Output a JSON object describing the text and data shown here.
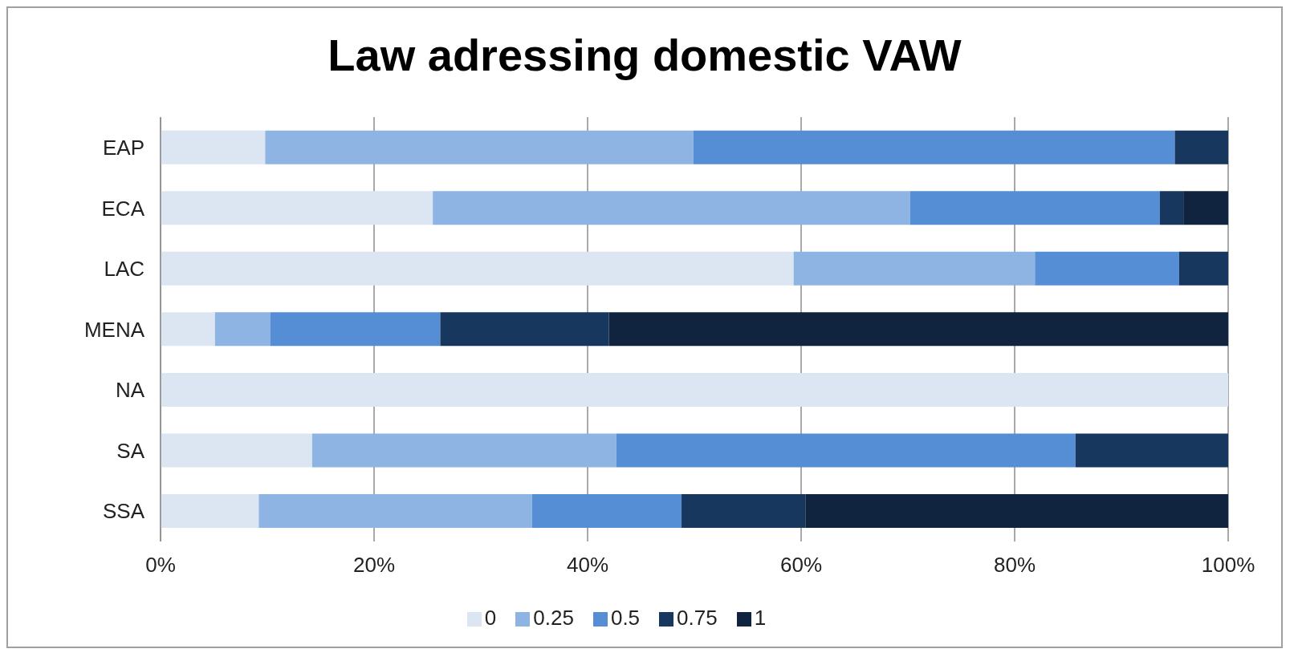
{
  "chart_data": {
    "type": "bar",
    "title": "Law adressing domestic VAW",
    "orientation": "horizontal",
    "stacked": true,
    "categories": [
      "EAP",
      "ECA",
      "LAC",
      "MENA",
      "NA",
      "SA",
      "SSA"
    ],
    "series": [
      {
        "name": "0",
        "color": "#dce6f2",
        "values": [
          9.8,
          25.5,
          59.3,
          5.1,
          100,
          14.2,
          9.2
        ]
      },
      {
        "name": "0.25",
        "color": "#8eb4e3",
        "values": [
          40.1,
          44.7,
          22.6,
          5.2,
          0,
          28.5,
          25.6
        ]
      },
      {
        "name": "0.5",
        "color": "#558ed5",
        "values": [
          45.1,
          23.4,
          13.5,
          15.9,
          0,
          43.0,
          14.0
        ]
      },
      {
        "name": "0.75",
        "color": "#17375e",
        "values": [
          5.0,
          2.2,
          4.6,
          15.8,
          0,
          14.3,
          11.6
        ]
      },
      {
        "name": "1",
        "color": "#10243f",
        "values": [
          0,
          4.2,
          0,
          58.0,
          0,
          0,
          39.6
        ]
      }
    ],
    "xlim": [
      0,
      100
    ],
    "xticks": [
      {
        "value": 0,
        "label": "0%"
      },
      {
        "value": 20,
        "label": "20%"
      },
      {
        "value": 40,
        "label": "40%"
      },
      {
        "value": 60,
        "label": "60%"
      },
      {
        "value": 80,
        "label": "80%"
      },
      {
        "value": 100,
        "label": "100%"
      }
    ],
    "grid": "x",
    "legend": "bottom"
  }
}
